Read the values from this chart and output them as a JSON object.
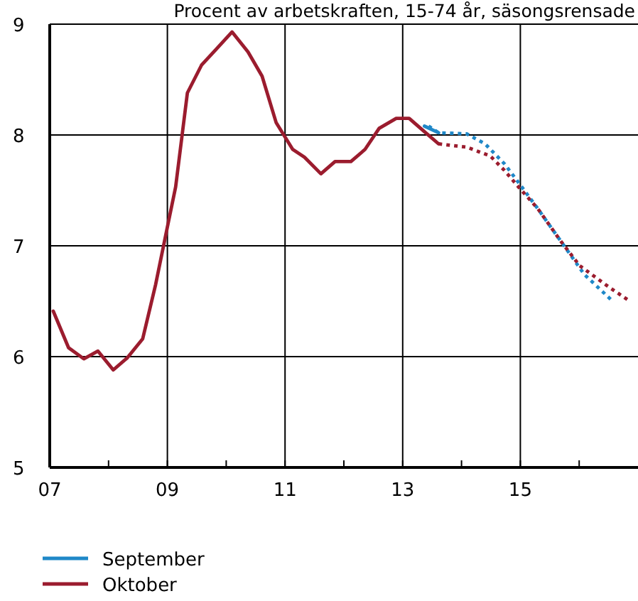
{
  "chart_data": {
    "type": "line",
    "title": "Procent av arbetskraften, 15-74 år, säsongsrensade",
    "xlim": [
      2007,
      2017
    ],
    "ylim": [
      5,
      9
    ],
    "xticks": [
      {
        "value": 2007,
        "label": "07"
      },
      {
        "value": 2008,
        "label": null
      },
      {
        "value": 2009,
        "label": "09"
      },
      {
        "value": 2010,
        "label": null
      },
      {
        "value": 2011,
        "label": "11"
      },
      {
        "value": 2012,
        "label": null
      },
      {
        "value": 2013,
        "label": "13"
      },
      {
        "value": 2014,
        "label": null
      },
      {
        "value": 2015,
        "label": "15"
      },
      {
        "value": 2016,
        "label": null
      }
    ],
    "yticks": [
      5,
      6,
      7,
      8,
      9
    ],
    "grid": true,
    "legend": "bottom",
    "series": [
      {
        "name": "September",
        "color": "#1f88c8",
        "line_style": "solid",
        "x": [
          2013.37,
          2013.61
        ],
        "values": [
          8.08,
          8.02
        ]
      },
      {
        "color": "#1f88c8",
        "line_style": "dotted",
        "x": [
          2013.44,
          2013.61,
          2014.09,
          2014.4,
          2014.73,
          2014.97,
          2015.29,
          2015.69,
          2016.09,
          2016.57
        ],
        "values": [
          8.08,
          8.02,
          8.01,
          7.92,
          7.74,
          7.57,
          7.34,
          7.04,
          6.74,
          6.5
        ]
      },
      {
        "color": "#9b1c2e",
        "line_style": "dotted",
        "x": [
          2013.61,
          2014.09,
          2014.49,
          2014.73,
          2014.97,
          2015.29,
          2015.69,
          2016.01,
          2016.5,
          2016.86
        ],
        "values": [
          7.92,
          7.89,
          7.81,
          7.68,
          7.53,
          7.34,
          7.04,
          6.82,
          6.63,
          6.5
        ]
      },
      {
        "name": "Oktober",
        "color": "#9b1c2e",
        "line_style": "solid",
        "x": [
          2007.06,
          2007.32,
          2007.58,
          2007.82,
          2008.08,
          2008.32,
          2008.58,
          2008.8,
          2009.0,
          2009.14,
          2009.34,
          2009.58,
          2009.84,
          2010.1,
          2010.37,
          2010.61,
          2010.85,
          2011.13,
          2011.33,
          2011.61,
          2011.85,
          2012.12,
          2012.36,
          2012.6,
          2012.89,
          2013.11,
          2013.37,
          2013.61
        ],
        "values": [
          6.41,
          6.08,
          5.98,
          6.05,
          5.88,
          5.99,
          6.16,
          6.65,
          7.17,
          7.53,
          8.38,
          8.63,
          8.78,
          8.93,
          8.75,
          8.53,
          8.11,
          7.87,
          7.8,
          7.65,
          7.76,
          7.76,
          7.87,
          8.06,
          8.15,
          8.15,
          8.03,
          7.92
        ]
      }
    ]
  }
}
